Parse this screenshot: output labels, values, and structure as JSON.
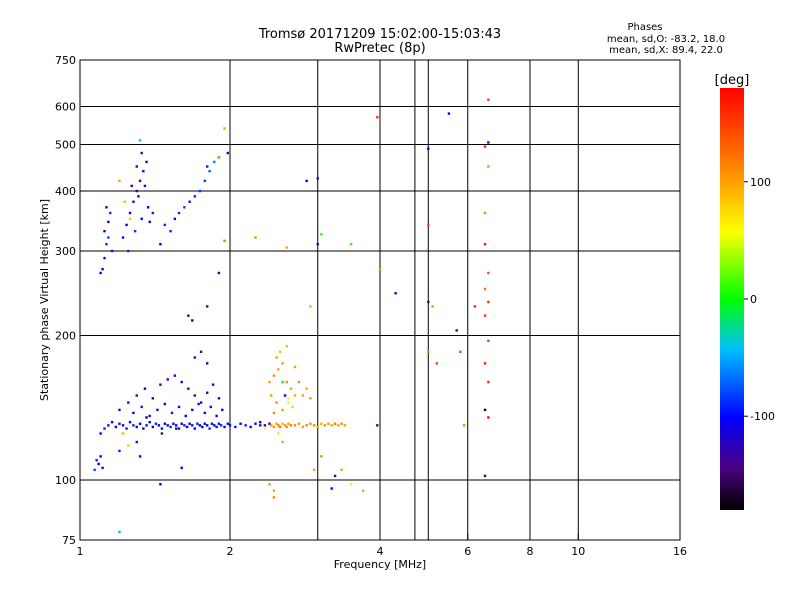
{
  "chart_data": {
    "type": "scatter",
    "title": "Tromsø 20171209 15:02:00-15:03:43",
    "subtitle": "RwPretec (8p)",
    "xlabel": "Frequency [MHz]",
    "ylabel": "Stationary phase Virtual Height [km]",
    "x_scale": "log",
    "y_scale": "log",
    "xlim": [
      1,
      16
    ],
    "ylim": [
      75,
      750
    ],
    "x_ticks": [
      1,
      2,
      4,
      6,
      8,
      10,
      16
    ],
    "x_tick_labels": [
      "1",
      "2",
      "4",
      "6",
      "8",
      "10",
      "16"
    ],
    "y_ticks": [
      75,
      100,
      200,
      300,
      400,
      500,
      600,
      750
    ],
    "y_tick_labels": [
      "75",
      "100",
      "200",
      "300",
      "400",
      "500",
      "600",
      "750"
    ],
    "extra_x_gridlines": [
      3,
      4.7,
      5
    ],
    "grid": true,
    "legend": {
      "title": "Phases",
      "lines": [
        "mean, sd,O: -83.2, 18.0",
        "mean, sd,X: 89.4, 22.0"
      ]
    },
    "colorbar": {
      "label": "[deg]",
      "range": [
        -180,
        180
      ],
      "tick_values": [
        100,
        0,
        -100
      ],
      "tick_labels": [
        "100",
        "0",
        "-100"
      ]
    },
    "points": [
      [
        1.1,
        270,
        -110
      ],
      [
        1.11,
        275,
        -100
      ],
      [
        1.12,
        290,
        -95
      ],
      [
        1.13,
        310,
        -90
      ],
      [
        1.12,
        330,
        -105
      ],
      [
        1.14,
        345,
        -100
      ],
      [
        1.15,
        360,
        -85
      ],
      [
        1.13,
        370,
        -120
      ],
      [
        1.16,
        300,
        -95
      ],
      [
        1.14,
        320,
        -80
      ],
      [
        1.22,
        320,
        -95
      ],
      [
        1.24,
        340,
        -100
      ],
      [
        1.26,
        360,
        -110
      ],
      [
        1.28,
        380,
        -120
      ],
      [
        1.3,
        400,
        -125
      ],
      [
        1.32,
        420,
        -130
      ],
      [
        1.34,
        440,
        -115
      ],
      [
        1.36,
        460,
        -120
      ],
      [
        1.25,
        300,
        -90
      ],
      [
        1.29,
        330,
        -85
      ],
      [
        1.33,
        350,
        -100
      ],
      [
        1.37,
        370,
        -110
      ],
      [
        1.31,
        390,
        -105
      ],
      [
        1.35,
        410,
        -95
      ],
      [
        1.38,
        345,
        -100
      ],
      [
        1.4,
        360,
        -90
      ],
      [
        1.27,
        410,
        -130
      ],
      [
        1.3,
        450,
        -140
      ],
      [
        1.33,
        480,
        -135
      ],
      [
        1.23,
        380,
        90
      ],
      [
        1.2,
        420,
        100
      ],
      [
        1.26,
        350,
        80
      ],
      [
        1.32,
        510,
        -40
      ],
      [
        1.52,
        330,
        -90
      ],
      [
        1.55,
        350,
        -100
      ],
      [
        1.58,
        360,
        -85
      ],
      [
        1.62,
        370,
        -80
      ],
      [
        1.66,
        380,
        -95
      ],
      [
        1.7,
        390,
        -90
      ],
      [
        1.74,
        400,
        -85
      ],
      [
        1.78,
        420,
        -80
      ],
      [
        1.82,
        440,
        -70
      ],
      [
        1.86,
        460,
        -60
      ],
      [
        1.9,
        470,
        -100
      ],
      [
        1.45,
        310,
        -100
      ],
      [
        1.48,
        340,
        -90
      ],
      [
        1.07,
        105,
        -80
      ],
      [
        1.08,
        110,
        -90
      ],
      [
        1.09,
        108,
        -100
      ],
      [
        1.1,
        112,
        -110
      ],
      [
        1.11,
        106,
        -95
      ],
      [
        1.1,
        125,
        -100
      ],
      [
        1.12,
        128,
        -90
      ],
      [
        1.14,
        130,
        -95
      ],
      [
        1.16,
        132,
        -110
      ],
      [
        1.18,
        129,
        -100
      ],
      [
        1.2,
        131,
        -120
      ],
      [
        1.22,
        130,
        -105
      ],
      [
        1.24,
        128,
        -95
      ],
      [
        1.26,
        132,
        -100
      ],
      [
        1.28,
        130,
        -90
      ],
      [
        1.3,
        129,
        -110
      ],
      [
        1.32,
        131,
        -100
      ],
      [
        1.34,
        128,
        -120
      ],
      [
        1.36,
        130,
        -95
      ],
      [
        1.38,
        132,
        -105
      ],
      [
        1.4,
        129,
        -100
      ],
      [
        1.42,
        131,
        -90
      ],
      [
        1.44,
        130,
        -110
      ],
      [
        1.46,
        128,
        -95
      ],
      [
        1.48,
        131,
        -100
      ],
      [
        1.5,
        130,
        -105
      ],
      [
        1.52,
        129,
        -90
      ],
      [
        1.54,
        131,
        -110
      ],
      [
        1.56,
        130,
        -100
      ],
      [
        1.58,
        128,
        -95
      ],
      [
        1.6,
        131,
        -105
      ],
      [
        1.62,
        130,
        -90
      ],
      [
        1.64,
        129,
        -100
      ],
      [
        1.66,
        131,
        -110
      ],
      [
        1.68,
        130,
        -95
      ],
      [
        1.7,
        128,
        -100
      ],
      [
        1.72,
        131,
        -90
      ],
      [
        1.74,
        130,
        -105
      ],
      [
        1.76,
        129,
        -100
      ],
      [
        1.78,
        131,
        -95
      ],
      [
        1.8,
        130,
        -110
      ],
      [
        1.82,
        128,
        -90
      ],
      [
        1.84,
        131,
        -100
      ],
      [
        1.86,
        130,
        -105
      ],
      [
        1.88,
        129,
        -95
      ],
      [
        1.9,
        131,
        -100
      ],
      [
        1.92,
        130,
        -90
      ],
      [
        1.95,
        129,
        -100
      ],
      [
        1.98,
        131,
        -95
      ],
      [
        1.2,
        140,
        -120
      ],
      [
        1.25,
        145,
        -110
      ],
      [
        1.3,
        150,
        -130
      ],
      [
        1.35,
        155,
        -115
      ],
      [
        1.4,
        148,
        -125
      ],
      [
        1.45,
        158,
        -135
      ],
      [
        1.5,
        162,
        -120
      ],
      [
        1.55,
        165,
        -140
      ],
      [
        1.6,
        160,
        -110
      ],
      [
        1.65,
        155,
        -125
      ],
      [
        1.7,
        150,
        -130
      ],
      [
        1.75,
        145,
        -115
      ],
      [
        1.8,
        152,
        -120
      ],
      [
        1.85,
        158,
        -135
      ],
      [
        1.9,
        148,
        -125
      ],
      [
        1.28,
        138,
        -100
      ],
      [
        1.33,
        142,
        -95
      ],
      [
        1.38,
        136,
        -105
      ],
      [
        1.43,
        140,
        -110
      ],
      [
        1.48,
        144,
        -100
      ],
      [
        1.53,
        138,
        -95
      ],
      [
        1.58,
        142,
        -105
      ],
      [
        1.63,
        136,
        -100
      ],
      [
        1.68,
        140,
        -110
      ],
      [
        1.73,
        144,
        -95
      ],
      [
        1.78,
        138,
        -105
      ],
      [
        1.83,
        142,
        -100
      ],
      [
        1.88,
        136,
        -110
      ],
      [
        1.93,
        140,
        -100
      ],
      [
        1.7,
        180,
        -150
      ],
      [
        1.75,
        185,
        -140
      ],
      [
        1.8,
        175,
        -130
      ],
      [
        1.3,
        120,
        -95
      ],
      [
        1.2,
        115,
        -90
      ],
      [
        1.25,
        118,
        80
      ],
      [
        1.22,
        125,
        95
      ],
      [
        1.32,
        112,
        -100
      ],
      [
        1.36,
        135,
        -160
      ],
      [
        1.46,
        125,
        -150
      ],
      [
        1.56,
        128,
        -140
      ],
      [
        2.0,
        130,
        -100
      ],
      [
        2.05,
        129,
        -95
      ],
      [
        2.1,
        131,
        -105
      ],
      [
        2.15,
        130,
        -90
      ],
      [
        2.2,
        129,
        -100
      ],
      [
        2.25,
        131,
        -110
      ],
      [
        2.3,
        130,
        -95
      ],
      [
        2.35,
        130,
        -120
      ],
      [
        2.4,
        131,
        -100
      ],
      [
        2.42,
        130,
        105
      ],
      [
        2.45,
        129,
        110
      ],
      [
        2.48,
        131,
        100
      ],
      [
        2.5,
        130,
        115
      ],
      [
        2.52,
        129,
        120
      ],
      [
        2.55,
        131,
        95
      ],
      [
        2.58,
        130,
        105
      ],
      [
        2.6,
        129,
        110
      ],
      [
        2.62,
        131,
        100
      ],
      [
        2.65,
        130,
        115
      ],
      [
        2.7,
        130,
        110
      ],
      [
        2.75,
        131,
        105
      ],
      [
        2.8,
        129,
        100
      ],
      [
        2.85,
        130,
        115
      ],
      [
        2.9,
        131,
        110
      ],
      [
        2.95,
        130,
        105
      ],
      [
        3.0,
        129,
        100
      ],
      [
        3.05,
        131,
        95
      ],
      [
        3.1,
        130,
        110
      ],
      [
        3.15,
        131,
        105
      ],
      [
        3.2,
        130,
        100
      ],
      [
        3.25,
        131,
        115
      ],
      [
        3.3,
        130,
        105
      ],
      [
        3.35,
        131,
        110
      ],
      [
        3.4,
        130,
        100
      ],
      [
        2.4,
        160,
        100
      ],
      [
        2.45,
        165,
        110
      ],
      [
        2.5,
        170,
        95
      ],
      [
        2.55,
        175,
        105
      ],
      [
        2.48,
        180,
        100
      ],
      [
        2.52,
        185,
        90
      ],
      [
        2.6,
        160,
        110
      ],
      [
        2.65,
        155,
        100
      ],
      [
        2.7,
        150,
        95
      ],
      [
        2.42,
        150,
        105
      ],
      [
        2.48,
        145,
        110
      ],
      [
        2.55,
        140,
        100
      ],
      [
        2.58,
        150,
        -100
      ],
      [
        2.62,
        148,
        60
      ],
      [
        2.67,
        142,
        40
      ],
      [
        2.75,
        160,
        110
      ],
      [
        2.8,
        150,
        100
      ],
      [
        2.85,
        155,
        95
      ],
      [
        2.9,
        148,
        105
      ],
      [
        2.7,
        172,
        100
      ],
      [
        2.3,
        132,
        -130
      ],
      [
        2.35,
        128,
        60
      ],
      [
        2.5,
        125,
        50
      ],
      [
        2.55,
        120,
        100
      ],
      [
        2.45,
        138,
        110
      ],
      [
        2.6,
        190,
        90
      ],
      [
        2.62,
        145,
        70
      ],
      [
        2.4,
        98,
        110
      ],
      [
        2.45,
        95,
        100
      ],
      [
        2.95,
        105,
        100
      ],
      [
        3.05,
        112,
        110
      ],
      [
        3.35,
        105,
        100
      ],
      [
        3.05,
        325,
        10
      ],
      [
        1.95,
        315,
        120
      ],
      [
        2.25,
        320,
        110
      ],
      [
        2.6,
        305,
        100
      ],
      [
        3.0,
        310,
        -130
      ],
      [
        2.9,
        230,
        20
      ],
      [
        2.55,
        160,
        0
      ],
      [
        3.5,
        310,
        10
      ],
      [
        3.25,
        102,
        -130
      ],
      [
        3.2,
        96,
        -100
      ],
      [
        3.7,
        95,
        20
      ],
      [
        3.5,
        98,
        50
      ],
      [
        2.45,
        92,
        115
      ],
      [
        1.2,
        78,
        -40
      ],
      [
        1.45,
        98,
        -100
      ],
      [
        1.6,
        106,
        -100
      ],
      [
        1.9,
        270,
        -120
      ],
      [
        1.8,
        230,
        -140
      ],
      [
        1.65,
        220,
        -150
      ],
      [
        1.68,
        215,
        -160
      ],
      [
        1.8,
        450,
        -90
      ],
      [
        1.95,
        540,
        100
      ],
      [
        1.98,
        480,
        -130
      ],
      [
        1.9,
        470,
        110
      ],
      [
        2.85,
        420,
        -110
      ],
      [
        3.0,
        425,
        -130
      ],
      [
        3.95,
        570,
        150
      ],
      [
        4.0,
        275,
        110
      ],
      [
        4.3,
        245,
        -130
      ],
      [
        3.95,
        130,
        -150
      ],
      [
        5.0,
        490,
        -110
      ],
      [
        5.0,
        340,
        150
      ],
      [
        5.0,
        235,
        -150
      ],
      [
        5.1,
        230,
        110
      ],
      [
        5.0,
        185,
        110
      ],
      [
        5.2,
        175,
        140
      ],
      [
        5.5,
        580,
        -100
      ],
      [
        5.7,
        205,
        -150
      ],
      [
        5.8,
        185,
        140
      ],
      [
        5.9,
        130,
        110
      ],
      [
        6.2,
        230,
        160
      ],
      [
        6.5,
        310,
        170
      ],
      [
        6.6,
        505,
        -120
      ],
      [
        6.5,
        495,
        160
      ],
      [
        6.6,
        620,
        150
      ],
      [
        6.6,
        450,
        110
      ],
      [
        6.5,
        360,
        110
      ],
      [
        6.6,
        270,
        140
      ],
      [
        6.5,
        250,
        120
      ],
      [
        6.6,
        235,
        160
      ],
      [
        6.5,
        220,
        150
      ],
      [
        6.6,
        195,
        -60
      ],
      [
        6.5,
        175,
        170
      ],
      [
        6.6,
        160,
        160
      ],
      [
        6.5,
        140,
        -170
      ],
      [
        6.6,
        135,
        180
      ],
      [
        6.5,
        102,
        -150
      ]
    ]
  }
}
